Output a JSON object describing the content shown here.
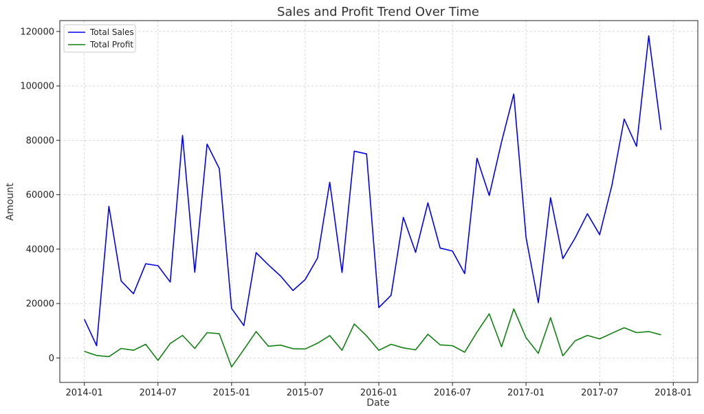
{
  "chart_data": {
    "type": "line",
    "title": "Sales and Profit Trend Over Time",
    "xlabel": "Date",
    "ylabel": "Amount",
    "x": [
      "2014-01",
      "2014-02",
      "2014-03",
      "2014-04",
      "2014-05",
      "2014-06",
      "2014-07",
      "2014-08",
      "2014-09",
      "2014-10",
      "2014-11",
      "2014-12",
      "2015-01",
      "2015-02",
      "2015-03",
      "2015-04",
      "2015-05",
      "2015-06",
      "2015-07",
      "2015-08",
      "2015-09",
      "2015-10",
      "2015-11",
      "2015-12",
      "2016-01",
      "2016-02",
      "2016-03",
      "2016-04",
      "2016-05",
      "2016-06",
      "2016-07",
      "2016-08",
      "2016-09",
      "2016-10",
      "2016-11",
      "2016-12",
      "2017-01",
      "2017-02",
      "2017-03",
      "2017-04",
      "2017-05",
      "2017-06",
      "2017-07",
      "2017-08",
      "2017-09",
      "2017-10",
      "2017-11",
      "2017-12"
    ],
    "series": [
      {
        "name": "Total Sales",
        "color": "#0000ee",
        "values": [
          14200,
          4500,
          55700,
          28300,
          23600,
          34600,
          33900,
          27900,
          81800,
          31500,
          78600,
          69600,
          18200,
          11900,
          38700,
          34200,
          30100,
          24800,
          28800,
          36700,
          64600,
          31400,
          76000,
          75000,
          18500,
          23000,
          51700,
          38800,
          57000,
          40400,
          39300,
          31000,
          73400,
          59700,
          79400,
          96999,
          44200,
          20300,
          58900,
          36500,
          44100,
          53000,
          45300,
          63500,
          87800,
          77800,
          118400,
          83800
        ]
      },
      {
        "name": "Total Profit",
        "color": "#108010",
        "values": [
          2400,
          900,
          500,
          3500,
          2800,
          5000,
          -900,
          5300,
          8300,
          3500,
          9300,
          8900,
          -3300,
          3100,
          9700,
          4300,
          4700,
          3400,
          3300,
          5400,
          8200,
          2800,
          12500,
          8100,
          2800,
          5000,
          3700,
          3000,
          8700,
          4800,
          4500,
          2100,
          9500,
          16200,
          4100,
          18000,
          7400,
          1700,
          14800,
          800,
          6300,
          8300,
          7000,
          9100,
          11100,
          9300,
          9700,
          8500
        ]
      }
    ],
    "xticks": [
      "2014-01",
      "2014-07",
      "2015-01",
      "2015-07",
      "2016-01",
      "2016-07",
      "2017-01",
      "2017-07",
      "2018-01"
    ],
    "yticks": [
      0,
      20000,
      40000,
      60000,
      80000,
      100000,
      120000
    ],
    "xlim": [
      "2013-11",
      "2018-03"
    ],
    "ylim": [
      -9000,
      124000
    ],
    "grid": true,
    "legend": "top-left"
  }
}
